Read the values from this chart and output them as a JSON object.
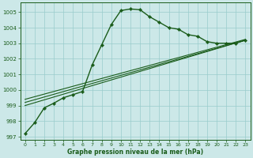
{
  "xlabel": "Graphe pression niveau de la mer (hPa)",
  "ylim": [
    996.8,
    1005.6
  ],
  "xlim": [
    -0.5,
    23.5
  ],
  "yticks": [
    997,
    998,
    999,
    1000,
    1001,
    1002,
    1003,
    1004,
    1005
  ],
  "xticks": [
    0,
    1,
    2,
    3,
    4,
    5,
    6,
    7,
    8,
    9,
    10,
    11,
    12,
    13,
    14,
    15,
    16,
    17,
    18,
    19,
    20,
    21,
    22,
    23
  ],
  "background_color": "#cce8e8",
  "grid_color": "#99cccc",
  "line_color": "#1a5c1a",
  "series1_x": [
    0,
    1,
    2,
    3,
    4,
    5,
    6,
    7,
    8,
    9,
    10,
    11,
    12,
    13,
    14,
    15,
    16,
    17,
    18,
    19,
    20,
    21,
    22,
    23
  ],
  "series1_y": [
    997.2,
    997.9,
    998.85,
    999.15,
    999.5,
    999.7,
    999.9,
    1001.6,
    1002.9,
    1004.2,
    1005.1,
    1005.2,
    1005.15,
    1004.7,
    1004.35,
    1004.0,
    1003.9,
    1003.55,
    1003.45,
    1003.1,
    1003.0,
    1003.0,
    1003.0,
    1003.2
  ],
  "series2_x": [
    0,
    23
  ],
  "series2_y": [
    999.0,
    1003.2
  ],
  "series3_x": [
    0,
    23
  ],
  "series3_y": [
    999.2,
    1003.2
  ],
  "series4_x": [
    0,
    23
  ],
  "series4_y": [
    999.4,
    1003.25
  ]
}
